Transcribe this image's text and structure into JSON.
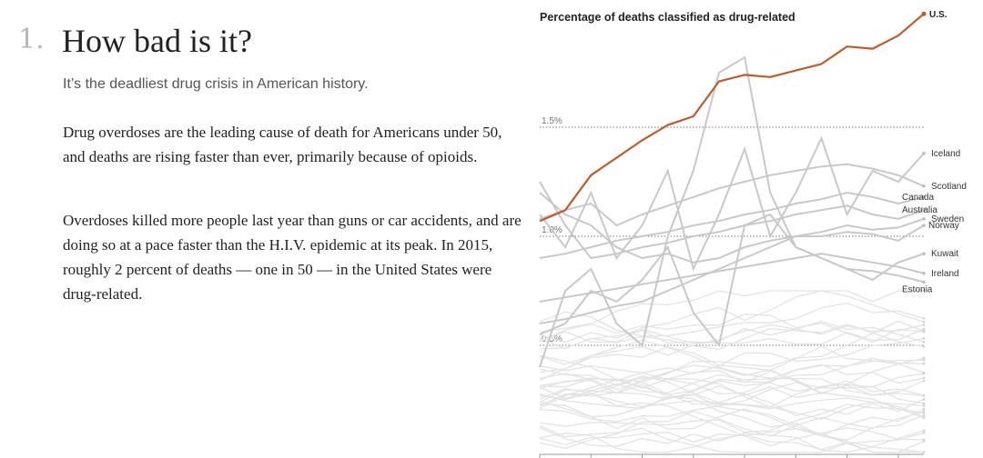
{
  "article": {
    "section_number": "1.",
    "section_title": "How bad is it?",
    "subtitle": "It’s the deadliest drug crisis in American history.",
    "paragraphs": [
      "Drug overdoses are the leading cause of death for Americans under 50, and deaths are rising faster than ever, primarily because of opioids.",
      "Overdoses killed more people last year than guns or car accidents, and are doing so at a pace faster than the H.I.V. epidemic at its peak. In 2015, roughly 2 percent of deaths — one in 50 — in the United States were drug-related."
    ]
  },
  "colors": {
    "us": "#c05a2c",
    "highlighted": "#c8c8c8",
    "background_lines": "#e3e3e3",
    "gridline": "#777777"
  },
  "chart_data": {
    "type": "line",
    "title": "Percentage of deaths classified as drug-related",
    "xlabel": "",
    "ylabel": "",
    "x": [
      2000,
      2001,
      2002,
      2003,
      2004,
      2005,
      2006,
      2007,
      2008,
      2009,
      2010,
      2011,
      2012,
      2013,
      2014,
      2015
    ],
    "ylim": [
      0,
      2.0
    ],
    "y_ticks": [
      {
        "value": 0.5,
        "label": "0.5%"
      },
      {
        "value": 1.0,
        "label": "1.0%"
      },
      {
        "value": 1.5,
        "label": "1.5%"
      }
    ],
    "grid": "dotted gridlines at labeled ticks",
    "series": [
      {
        "name": "U.S.",
        "values": [
          1.07,
          1.12,
          1.28,
          1.36,
          1.44,
          1.51,
          1.55,
          1.71,
          1.74,
          1.73,
          1.76,
          1.79,
          1.87,
          1.86,
          1.92,
          2.02
        ],
        "emphasis": "primary"
      },
      {
        "name": "Iceland",
        "values": [
          1.1,
          0.95,
          1.2,
          0.9,
          1.05,
          1.3,
          0.85,
          1.1,
          1.4,
          1.0,
          1.2,
          1.45,
          1.1,
          1.3,
          1.25,
          1.38
        ],
        "emphasis": "labeled"
      },
      {
        "name": "Scotland",
        "values": [
          1.08,
          1.12,
          1.15,
          1.05,
          1.1,
          1.14,
          1.18,
          1.22,
          1.25,
          1.28,
          1.3,
          1.32,
          1.33,
          1.31,
          1.28,
          1.23
        ],
        "emphasis": "labeled"
      },
      {
        "name": "Canada",
        "values": [
          0.9,
          0.92,
          0.95,
          0.98,
          1.0,
          1.02,
          1.05,
          1.07,
          1.1,
          1.12,
          1.15,
          1.17,
          1.2,
          1.18,
          1.15,
          1.18
        ],
        "emphasis": "labeled"
      },
      {
        "name": "Australia",
        "values": [
          1.25,
          1.05,
          0.9,
          0.92,
          0.95,
          0.97,
          1.0,
          1.02,
          1.05,
          1.07,
          1.1,
          1.12,
          1.14,
          1.1,
          1.08,
          1.12
        ],
        "emphasis": "labeled"
      },
      {
        "name": "Sweden",
        "values": [
          0.6,
          0.62,
          0.65,
          0.68,
          0.7,
          0.75,
          0.8,
          0.85,
          0.9,
          0.95,
          1.0,
          1.02,
          1.05,
          1.03,
          1.04,
          1.08
        ],
        "emphasis": "labeled"
      },
      {
        "name": "Norway",
        "values": [
          1.2,
          1.1,
          1.05,
          0.95,
          0.9,
          0.92,
          0.88,
          0.9,
          0.95,
          0.98,
          1.0,
          1.0,
          1.02,
          1.01,
          0.98,
          1.05
        ],
        "emphasis": "labeled"
      },
      {
        "name": "Kuwait",
        "values": [
          0.55,
          0.6,
          0.75,
          0.7,
          0.8,
          0.95,
          0.65,
          0.5,
          1.05,
          1.1,
          0.95,
          0.9,
          0.85,
          0.8,
          0.88,
          0.92
        ],
        "emphasis": "labeled"
      },
      {
        "name": "Ireland",
        "values": [
          0.7,
          0.72,
          0.74,
          0.76,
          0.78,
          0.8,
          0.82,
          0.84,
          0.86,
          0.88,
          0.9,
          0.92,
          0.9,
          0.88,
          0.86,
          0.83
        ],
        "emphasis": "labeled"
      },
      {
        "name": "Estonia",
        "values": [
          0.4,
          0.75,
          0.85,
          0.6,
          0.5,
          1.0,
          1.3,
          1.75,
          1.82,
          1.2,
          0.95,
          0.9,
          0.85,
          0.84,
          0.82,
          0.79
        ],
        "emphasis": "labeled"
      }
    ],
    "background_series_count": 34,
    "background_series_range": [
      0.02,
      0.6
    ]
  }
}
